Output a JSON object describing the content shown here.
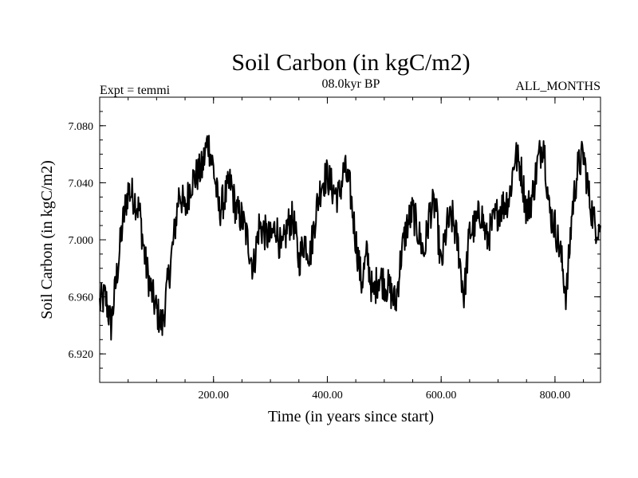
{
  "chart_data": {
    "type": "line",
    "title": "Soil Carbon (in kgC/m2)",
    "subtitle_left": "Expt = temmi",
    "subtitle_center": "08.0kyr BP",
    "subtitle_right": "ALL_MONTHS",
    "xlabel": "Time (in years since start)",
    "ylabel": "Soil Carbon (in kgC/m2)",
    "xlim": [
      0,
      880
    ],
    "ylim": [
      6.9,
      7.1
    ],
    "x_ticks": [
      200,
      400,
      600,
      800
    ],
    "x_tick_labels": [
      "200.00",
      "400.00",
      "600.00",
      "800.00"
    ],
    "y_ticks": [
      6.92,
      6.96,
      7.0,
      7.04,
      7.08
    ],
    "y_tick_labels": [
      "6.920",
      "6.960",
      "7.000",
      "7.040",
      "7.080"
    ],
    "series": [
      {
        "name": "Soil Carbon",
        "color": "#000000",
        "x": [
          0,
          10,
          20,
          30,
          40,
          50,
          60,
          70,
          80,
          90,
          100,
          110,
          120,
          130,
          140,
          150,
          160,
          170,
          180,
          190,
          200,
          210,
          220,
          230,
          240,
          250,
          260,
          270,
          280,
          290,
          300,
          310,
          320,
          330,
          340,
          350,
          360,
          370,
          380,
          390,
          400,
          410,
          420,
          430,
          440,
          450,
          460,
          470,
          480,
          490,
          500,
          510,
          520,
          530,
          540,
          550,
          560,
          570,
          580,
          590,
          600,
          610,
          620,
          630,
          640,
          650,
          660,
          670,
          680,
          690,
          700,
          710,
          720,
          730,
          740,
          750,
          760,
          770,
          780,
          790,
          800,
          810,
          820,
          830,
          840,
          850,
          860,
          870,
          880
        ],
        "values": [
          6.955,
          6.96,
          6.94,
          6.975,
          7.01,
          7.035,
          7.03,
          7.02,
          6.985,
          6.965,
          6.95,
          6.94,
          6.97,
          7.0,
          7.035,
          7.02,
          7.04,
          7.045,
          7.05,
          7.07,
          7.05,
          7.02,
          7.03,
          7.04,
          7.02,
          7.015,
          7.0,
          6.98,
          7.01,
          7.005,
          7.0,
          7.01,
          6.99,
          7.01,
          7.015,
          6.985,
          7.0,
          6.99,
          7.02,
          7.04,
          7.045,
          7.035,
          7.03,
          7.05,
          7.035,
          7.0,
          6.97,
          6.99,
          6.96,
          6.975,
          6.97,
          6.965,
          6.955,
          6.99,
          7.01,
          7.02,
          7.005,
          6.99,
          7.02,
          7.025,
          6.98,
          7.01,
          7.015,
          6.995,
          6.96,
          7.005,
          7.01,
          7.02,
          7.0,
          7.01,
          7.02,
          7.025,
          7.03,
          7.06,
          7.05,
          7.02,
          7.03,
          7.055,
          7.07,
          7.02,
          7.01,
          6.99,
          6.96,
          7.02,
          7.05,
          7.06,
          7.03,
          7.01,
          7.01
        ]
      }
    ]
  }
}
